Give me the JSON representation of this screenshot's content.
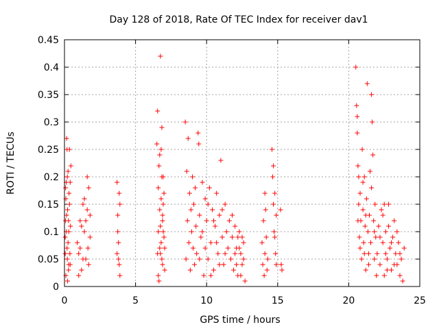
{
  "chart_data": {
    "type": "scatter",
    "title": "Day 128 of 2018, Rate Of TEC Index for receiver dav1",
    "xlabel": "GPS time / hours",
    "ylabel": "ROTI / TECUs",
    "xlim": [
      0,
      25
    ],
    "ylim": [
      0,
      0.45
    ],
    "xticks": [
      0,
      5,
      10,
      15,
      20,
      25
    ],
    "xtick_labels": [
      "0",
      "5",
      "10",
      "15",
      "20",
      "25"
    ],
    "yticks": [
      0,
      0.05,
      0.1,
      0.15,
      0.2,
      0.25,
      0.3,
      0.35,
      0.4,
      0.45
    ],
    "ytick_labels": [
      "0",
      "0.05",
      "0.1",
      "0.15",
      "0.2",
      "0.25",
      "0.3",
      "0.35",
      "0.4",
      "0.45"
    ],
    "grid": true,
    "marker": "plus",
    "series": [
      {
        "name": "ROTI",
        "color": "#ff0000",
        "points": [
          [
            0.05,
            0.09
          ],
          [
            0.08,
            0.12
          ],
          [
            0.1,
            0.16
          ],
          [
            0.12,
            0.19
          ],
          [
            0.15,
            0.27
          ],
          [
            0.18,
            0.07
          ],
          [
            0.2,
            0.05
          ],
          [
            0.22,
            0.14
          ],
          [
            0.25,
            0.21
          ],
          [
            0.28,
            0.03
          ],
          [
            0.1,
            0.02
          ],
          [
            0.3,
            0.1
          ],
          [
            0.32,
            0.17
          ],
          [
            0.35,
            0.25
          ],
          [
            0.38,
            0.06
          ],
          [
            0.4,
            0.04
          ],
          [
            0.42,
            0.11
          ],
          [
            0.45,
            0.22
          ],
          [
            0.05,
            0.06
          ],
          [
            0.15,
            0.13
          ],
          [
            0.2,
            0.2
          ],
          [
            0.25,
            0.08
          ],
          [
            0.3,
            0.04
          ],
          [
            0.35,
            0.15
          ],
          [
            0.4,
            0.19
          ],
          [
            0.12,
            0.1
          ],
          [
            0.18,
            0.25
          ],
          [
            0.22,
            0.01
          ],
          [
            0.08,
            0.18
          ],
          [
            0.28,
            0.12
          ],
          [
            0.9,
            0.08
          ],
          [
            1.0,
            0.06
          ],
          [
            1.1,
            0.12
          ],
          [
            1.2,
            0.03
          ],
          [
            1.3,
            0.15
          ],
          [
            1.4,
            0.1
          ],
          [
            1.5,
            0.05
          ],
          [
            1.6,
            0.14
          ],
          [
            1.7,
            0.18
          ],
          [
            1.8,
            0.09
          ],
          [
            1.0,
            0.02
          ],
          [
            1.2,
            0.11
          ],
          [
            1.4,
            0.16
          ],
          [
            1.6,
            0.2
          ],
          [
            1.7,
            0.04
          ],
          [
            1.8,
            0.13
          ],
          [
            1.1,
            0.07
          ],
          [
            1.3,
            0.05
          ],
          [
            1.5,
            0.12
          ],
          [
            1.65,
            0.07
          ],
          [
            3.7,
            0.19
          ],
          [
            3.75,
            0.13
          ],
          [
            3.8,
            0.05
          ],
          [
            3.85,
            0.17
          ],
          [
            3.9,
            0.02
          ],
          [
            3.8,
            0.08
          ],
          [
            3.75,
            0.1
          ],
          [
            3.85,
            0.04
          ],
          [
            3.7,
            0.06
          ],
          [
            3.9,
            0.15
          ],
          [
            6.5,
            0.26
          ],
          [
            6.55,
            0.32
          ],
          [
            6.6,
            0.1
          ],
          [
            6.65,
            0.22
          ],
          [
            6.7,
            0.07
          ],
          [
            6.75,
            0.42
          ],
          [
            6.8,
            0.16
          ],
          [
            6.85,
            0.05
          ],
          [
            6.9,
            0.12
          ],
          [
            6.95,
            0.2
          ],
          [
            7.0,
            0.09
          ],
          [
            7.05,
            0.03
          ],
          [
            6.6,
            0.18
          ],
          [
            6.7,
            0.14
          ],
          [
            6.8,
            0.25
          ],
          [
            6.9,
            0.04
          ],
          [
            6.55,
            0.06
          ],
          [
            6.75,
            0.11
          ],
          [
            6.85,
            0.29
          ],
          [
            6.95,
            0.15
          ],
          [
            6.6,
            0.02
          ],
          [
            6.7,
            0.24
          ],
          [
            6.8,
            0.08
          ],
          [
            6.9,
            0.13
          ],
          [
            7.0,
            0.17
          ],
          [
            6.65,
            0.01
          ],
          [
            6.75,
            0.06
          ],
          [
            6.85,
            0.2
          ],
          [
            6.95,
            0.1
          ],
          [
            7.05,
            0.07
          ],
          [
            8.5,
            0.3
          ],
          [
            8.55,
            0.05
          ],
          [
            8.6,
            0.21
          ],
          [
            8.65,
            0.12
          ],
          [
            8.7,
            0.27
          ],
          [
            8.75,
            0.08
          ],
          [
            8.8,
            0.17
          ],
          [
            8.85,
            0.03
          ],
          [
            8.9,
            0.14
          ],
          [
            8.95,
            0.1
          ],
          [
            9.0,
            0.2
          ],
          [
            9.05,
            0.07
          ],
          [
            9.1,
            0.15
          ],
          [
            9.15,
            0.04
          ],
          [
            9.2,
            0.18
          ],
          [
            9.25,
            0.11
          ],
          [
            9.3,
            0.06
          ],
          [
            9.4,
            0.28
          ],
          [
            9.45,
            0.26
          ],
          [
            9.5,
            0.13
          ],
          [
            9.6,
            0.09
          ],
          [
            9.7,
            0.19
          ],
          [
            9.8,
            0.02
          ],
          [
            9.9,
            0.16
          ],
          [
            10.0,
            0.12
          ],
          [
            10.1,
            0.05
          ],
          [
            10.2,
            0.18
          ],
          [
            10.3,
            0.08
          ],
          [
            10.4,
            0.14
          ],
          [
            10.5,
            0.03
          ],
          [
            10.6,
            0.11
          ],
          [
            10.7,
            0.17
          ],
          [
            10.8,
            0.06
          ],
          [
            10.9,
            0.13
          ],
          [
            11.0,
            0.23
          ],
          [
            11.1,
            0.09
          ],
          [
            11.2,
            0.04
          ],
          [
            11.3,
            0.15
          ],
          [
            11.4,
            0.1
          ],
          [
            11.5,
            0.07
          ],
          [
            9.5,
            0.05
          ],
          [
            9.7,
            0.1
          ],
          [
            9.9,
            0.07
          ],
          [
            10.1,
            0.15
          ],
          [
            10.3,
            0.02
          ],
          [
            10.5,
            0.12
          ],
          [
            10.7,
            0.08
          ],
          [
            10.9,
            0.04
          ],
          [
            11.1,
            0.14
          ],
          [
            11.3,
            0.06
          ],
          [
            11.6,
            0.12
          ],
          [
            11.7,
            0.05
          ],
          [
            11.8,
            0.09
          ],
          [
            11.9,
            0.03
          ],
          [
            12.0,
            0.11
          ],
          [
            12.1,
            0.07
          ],
          [
            12.2,
            0.02
          ],
          [
            12.3,
            0.1
          ],
          [
            12.4,
            0.06
          ],
          [
            12.5,
            0.04
          ],
          [
            12.6,
            0.08
          ],
          [
            12.7,
            0.01
          ],
          [
            12.0,
            0.06
          ],
          [
            12.2,
            0.09
          ],
          [
            12.4,
            0.02
          ],
          [
            12.6,
            0.05
          ],
          [
            11.8,
            0.13
          ],
          [
            12.1,
            0.04
          ],
          [
            12.3,
            0.07
          ],
          [
            12.5,
            0.09
          ],
          [
            13.9,
            0.08
          ],
          [
            13.95,
            0.04
          ],
          [
            14.0,
            0.12
          ],
          [
            14.05,
            0.02
          ],
          [
            14.1,
            0.06
          ],
          [
            14.15,
            0.14
          ],
          [
            14.2,
            0.09
          ],
          [
            14.25,
            0.03
          ],
          [
            14.3,
            0.05
          ],
          [
            14.1,
            0.17
          ],
          [
            14.6,
            0.25
          ],
          [
            14.65,
            0.2
          ],
          [
            14.7,
            0.15
          ],
          [
            14.75,
            0.1
          ],
          [
            14.8,
            0.17
          ],
          [
            14.85,
            0.06
          ],
          [
            14.9,
            0.13
          ],
          [
            14.7,
            0.22
          ],
          [
            14.8,
            0.09
          ],
          [
            14.9,
            0.04
          ],
          [
            15.2,
            0.14
          ],
          [
            15.25,
            0.04
          ],
          [
            15.3,
            0.03
          ],
          [
            20.5,
            0.4
          ],
          [
            20.55,
            0.33
          ],
          [
            20.6,
            0.28
          ],
          [
            20.65,
            0.22
          ],
          [
            20.7,
            0.15
          ],
          [
            20.75,
            0.09
          ],
          [
            20.8,
            0.17
          ],
          [
            20.85,
            0.12
          ],
          [
            20.9,
            0.05
          ],
          [
            20.95,
            0.25
          ],
          [
            21.0,
            0.14
          ],
          [
            21.05,
            0.08
          ],
          [
            21.1,
            0.2
          ],
          [
            21.15,
            0.11
          ],
          [
            21.2,
            0.03
          ],
          [
            21.25,
            0.16
          ],
          [
            21.3,
            0.37
          ],
          [
            21.35,
            0.1
          ],
          [
            21.4,
            0.06
          ],
          [
            21.45,
            0.13
          ],
          [
            21.5,
            0.21
          ],
          [
            21.55,
            0.08
          ],
          [
            21.6,
            0.35
          ],
          [
            21.65,
            0.3
          ],
          [
            21.7,
            0.24
          ],
          [
            21.75,
            0.12
          ],
          [
            21.8,
            0.05
          ],
          [
            21.85,
            0.15
          ],
          [
            21.9,
            0.09
          ],
          [
            21.95,
            0.02
          ],
          [
            20.6,
            0.31
          ],
          [
            20.7,
            0.2
          ],
          [
            20.8,
            0.07
          ],
          [
            21.0,
            0.19
          ],
          [
            21.2,
            0.13
          ],
          [
            21.4,
            0.04
          ],
          [
            21.6,
            0.18
          ],
          [
            21.8,
            0.1
          ],
          [
            20.65,
            0.12
          ],
          [
            21.1,
            0.06
          ],
          [
            22.0,
            0.06
          ],
          [
            22.1,
            0.11
          ],
          [
            22.2,
            0.04
          ],
          [
            22.3,
            0.14
          ],
          [
            22.4,
            0.08
          ],
          [
            22.5,
            0.02
          ],
          [
            22.6,
            0.1
          ],
          [
            22.7,
            0.05
          ],
          [
            22.8,
            0.15
          ],
          [
            22.9,
            0.07
          ],
          [
            23.0,
            0.03
          ],
          [
            23.1,
            0.09
          ],
          [
            23.2,
            0.12
          ],
          [
            23.3,
            0.06
          ],
          [
            23.4,
            0.04
          ],
          [
            23.5,
            0.08
          ],
          [
            23.6,
            0.02
          ],
          [
            23.7,
            0.05
          ],
          [
            23.8,
            0.01
          ],
          [
            23.9,
            0.07
          ],
          [
            22.2,
            0.09
          ],
          [
            22.4,
            0.13
          ],
          [
            22.6,
            0.06
          ],
          [
            22.8,
            0.11
          ],
          [
            23.0,
            0.08
          ],
          [
            23.2,
            0.04
          ],
          [
            23.4,
            0.1
          ],
          [
            23.6,
            0.06
          ],
          [
            22.5,
            0.15
          ],
          [
            22.7,
            0.03
          ]
        ]
      }
    ]
  }
}
